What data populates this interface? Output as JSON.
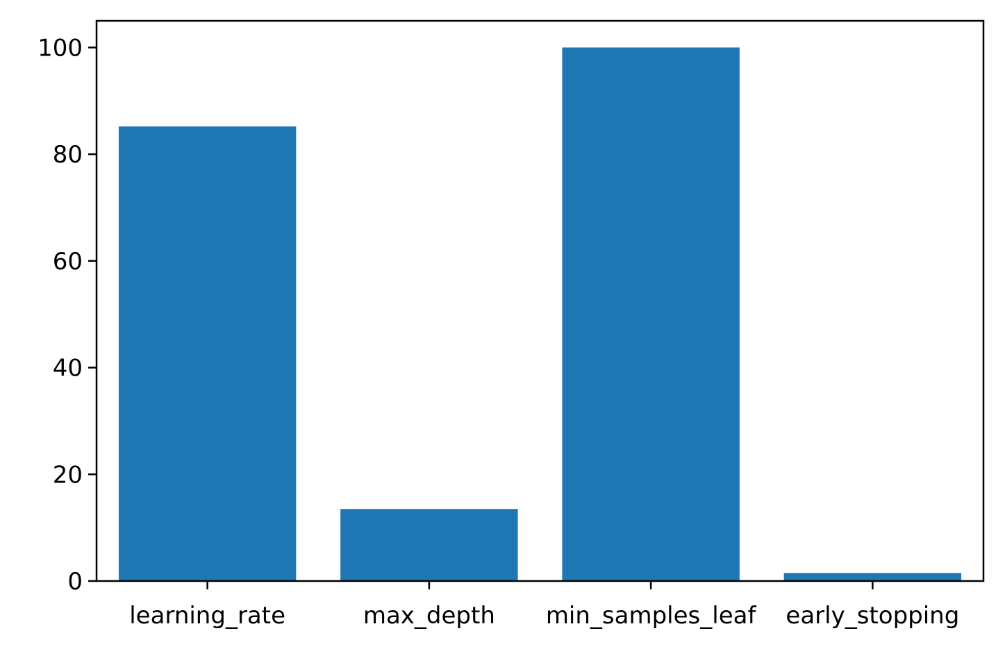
{
  "chart_data": {
    "type": "bar",
    "categories": [
      "learning_rate",
      "max_depth",
      "min_samples_leaf",
      "early_stopping"
    ],
    "values": [
      85.2,
      13.5,
      100.0,
      1.5
    ],
    "title": "",
    "xlabel": "",
    "ylabel": "",
    "ylim": [
      0,
      105
    ],
    "yticks": [
      0,
      20,
      40,
      60,
      80,
      100
    ],
    "grid": false,
    "legend": "none",
    "colors": {
      "bar": "#1f77b4",
      "axis": "#000000",
      "background": "#ffffff"
    }
  }
}
